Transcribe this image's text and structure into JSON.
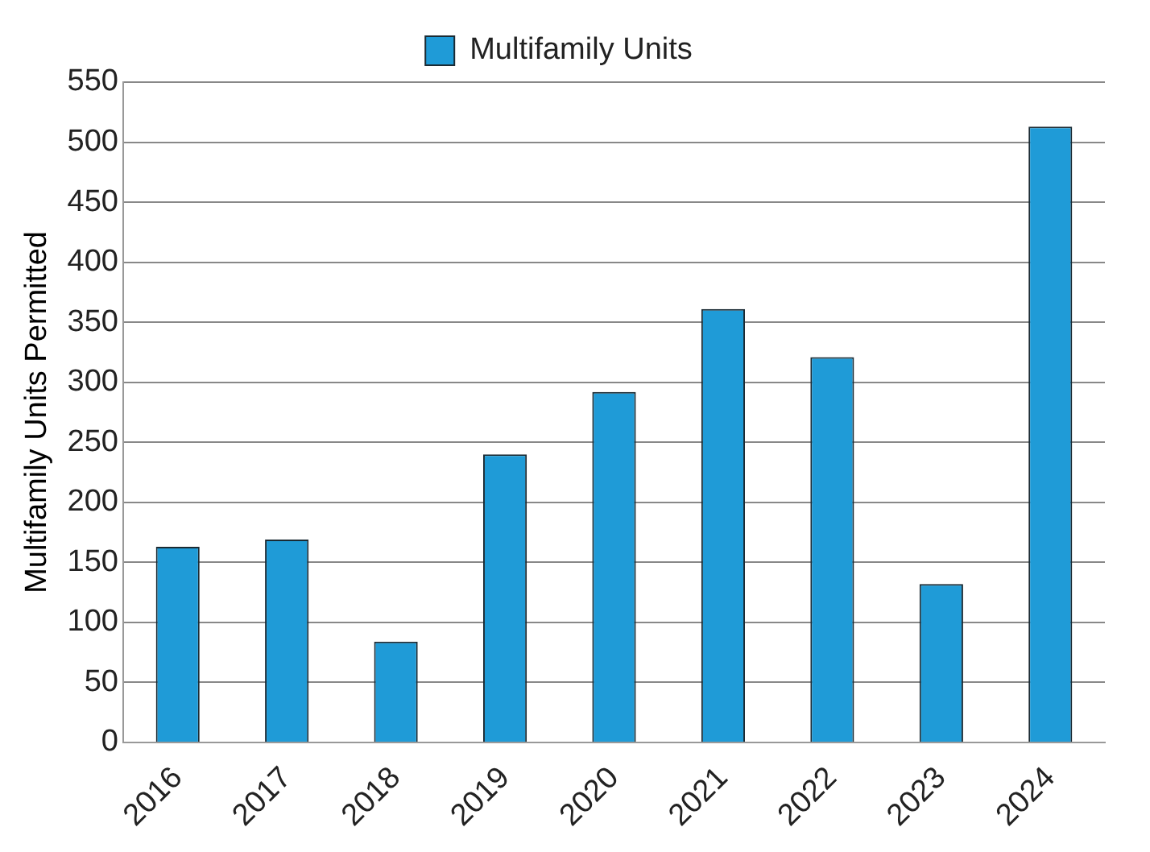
{
  "chart_data": {
    "type": "bar",
    "ylabel": "Multifamily Units Permitted",
    "categories": [
      "2016",
      "2017",
      "2018",
      "2019",
      "2020",
      "2021",
      "2022",
      "2023",
      "2024"
    ],
    "series": [
      {
        "name": "Multifamily Units",
        "color": "#1f9bd7",
        "values": [
          163,
          169,
          84,
          240,
          292,
          361,
          321,
          132,
          513
        ]
      }
    ],
    "ylim": [
      0,
      550
    ],
    "yticks": [
      0,
      50,
      100,
      150,
      200,
      250,
      300,
      350,
      400,
      450,
      500,
      550
    ],
    "grid": "y",
    "legend": "top"
  }
}
